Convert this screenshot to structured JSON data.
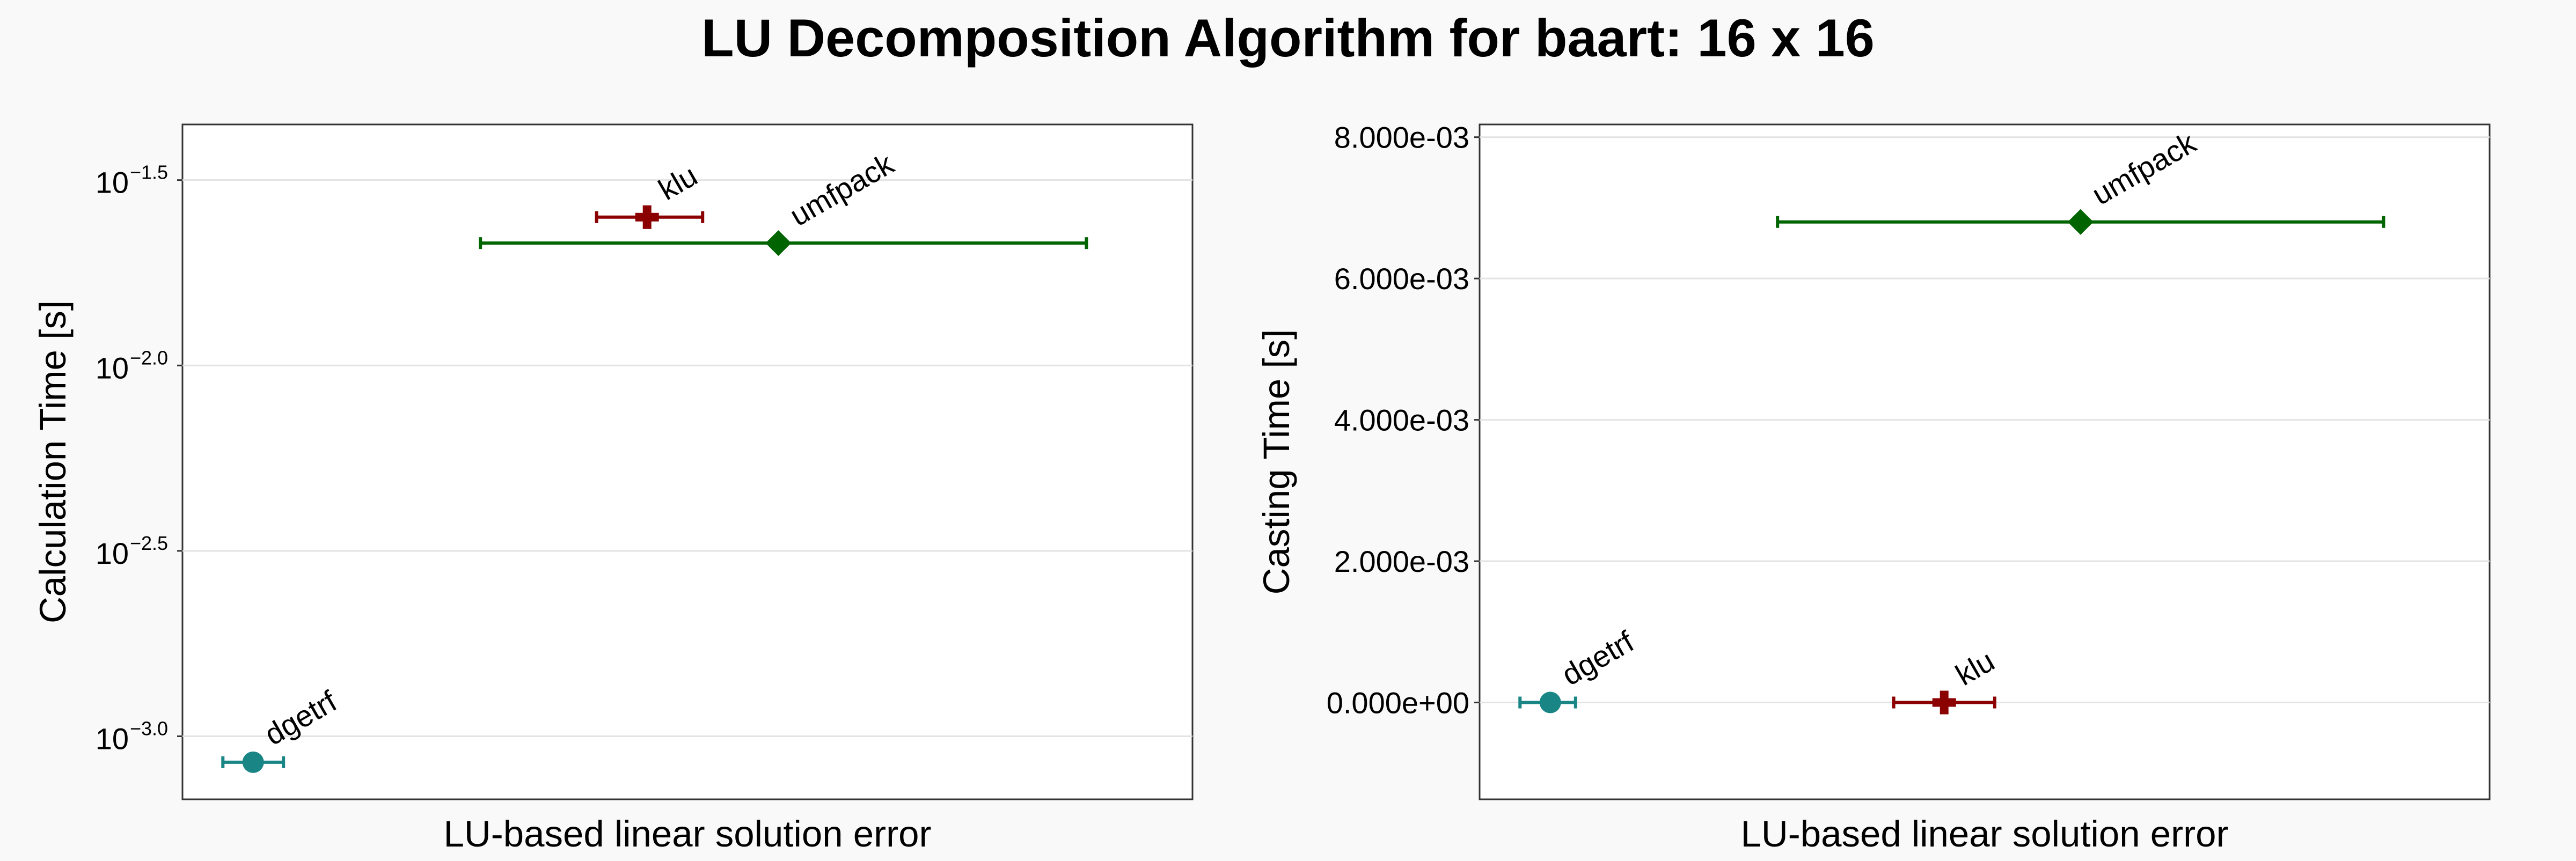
{
  "figure": {
    "title": "LU Decomposition Algorithm for baart: 16 x 16"
  },
  "chart_data": [
    {
      "type": "scatter",
      "title": "",
      "xlabel": "LU-based linear solution error",
      "ylabel": "Calculation Time [s]",
      "y_scale": "log10",
      "x_ticks_shown": false,
      "yticks": [
        {
          "base": "10",
          "exp": "−1.5",
          "value": -1.5
        },
        {
          "base": "10",
          "exp": "−2.0",
          "value": -2.0
        },
        {
          "base": "10",
          "exp": "−2.5",
          "value": -2.5
        },
        {
          "base": "10",
          "exp": "−3.0",
          "value": -3.0
        }
      ],
      "ylim": [
        -3.17,
        -1.35
      ],
      "xlim": [
        0,
        1
      ],
      "grid": true,
      "legend": "none",
      "series": [
        {
          "label": "dgetrf",
          "marker": "circle",
          "color": "#1a8585",
          "x": 0.07,
          "x_err": [
            0.04,
            0.1
          ],
          "y": -3.07
        },
        {
          "label": "klu",
          "marker": "plus",
          "color": "#8b0000",
          "x": 0.46,
          "x_err": [
            0.41,
            0.515
          ],
          "y": -1.6
        },
        {
          "label": "umfpack",
          "marker": "diamond",
          "color": "#006400",
          "x": 0.59,
          "x_err": [
            0.295,
            0.895
          ],
          "y": -1.67
        }
      ]
    },
    {
      "type": "scatter",
      "title": "",
      "xlabel": "LU-based linear solution error",
      "ylabel": "Casting Time [s]",
      "y_scale": "linear",
      "x_ticks_shown": false,
      "yticks": [
        {
          "label": "8.000e-03",
          "value": 0.008
        },
        {
          "label": "6.000e-03",
          "value": 0.006
        },
        {
          "label": "4.000e-03",
          "value": 0.004
        },
        {
          "label": "2.000e-03",
          "value": 0.002
        },
        {
          "label": "0.000e+00",
          "value": 0.0
        }
      ],
      "ylim": [
        -0.00137,
        0.00818
      ],
      "xlim": [
        0,
        1
      ],
      "grid": true,
      "legend": "none",
      "series": [
        {
          "label": "dgetrf",
          "marker": "circle",
          "color": "#1a8585",
          "x": 0.07,
          "x_err": [
            0.04,
            0.095
          ],
          "y": 0.0
        },
        {
          "label": "klu",
          "marker": "plus",
          "color": "#8b0000",
          "x": 0.46,
          "x_err": [
            0.41,
            0.51
          ],
          "y": 0.0
        },
        {
          "label": "umfpack",
          "marker": "diamond",
          "color": "#006400",
          "x": 0.595,
          "x_err": [
            0.295,
            0.895
          ],
          "y": 0.0068
        }
      ]
    }
  ]
}
